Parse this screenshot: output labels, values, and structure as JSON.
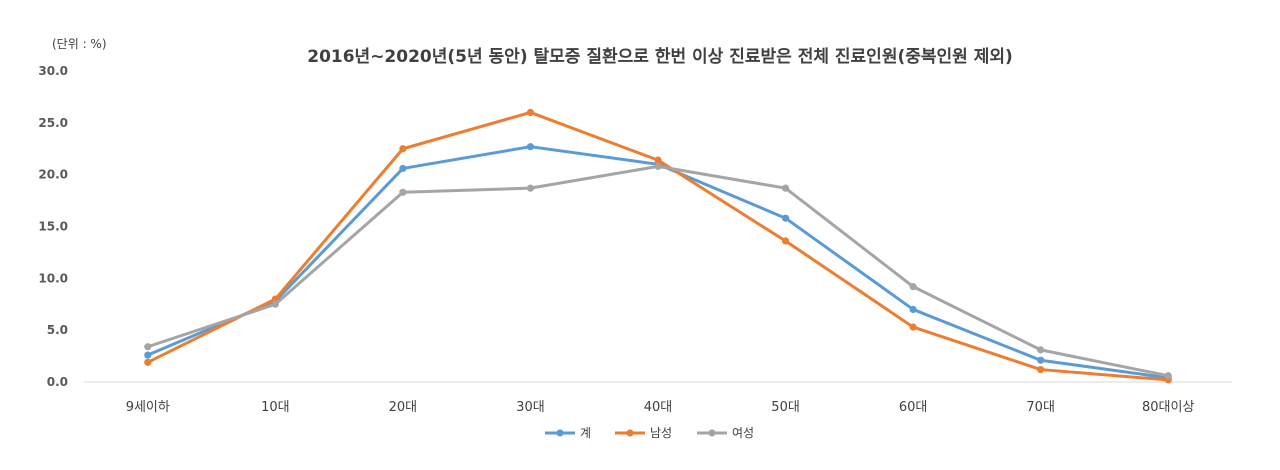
{
  "chart_data": {
    "type": "line",
    "title": "2016년~2020년(5년 동안) 탈모증 질환으로 한번 이상 진료받은 전체 진료인원(중복인원 제외)",
    "unit_label": "(단위 : %)",
    "categories": [
      "9세이하",
      "10대",
      "20대",
      "30대",
      "40대",
      "50대",
      "60대",
      "70대",
      "80대이상"
    ],
    "ylim": [
      0,
      30
    ],
    "yticks": [
      "0.0",
      "5.0",
      "10.0",
      "15.0",
      "20.0",
      "25.0",
      "30.0"
    ],
    "grid": false,
    "legend_position": "bottom",
    "series": [
      {
        "name": "계",
        "color": "#5B9BD5",
        "values": [
          2.6,
          7.8,
          20.6,
          22.7,
          21.0,
          15.8,
          7.0,
          2.1,
          0.4
        ]
      },
      {
        "name": "남성",
        "color": "#ED7D31",
        "values": [
          1.9,
          8.0,
          22.5,
          26.0,
          21.4,
          13.6,
          5.3,
          1.2,
          0.2
        ]
      },
      {
        "name": "여성",
        "color": "#A5A5A5",
        "values": [
          3.4,
          7.5,
          18.3,
          18.7,
          20.8,
          18.7,
          9.2,
          3.1,
          0.6
        ]
      }
    ]
  }
}
